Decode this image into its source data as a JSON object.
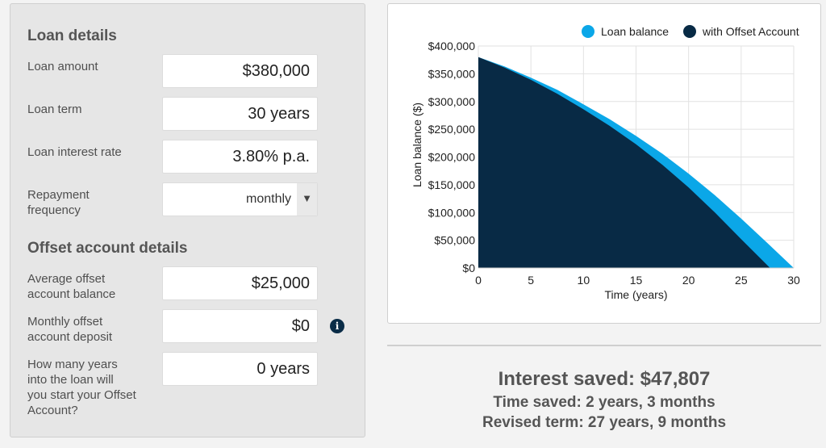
{
  "loan": {
    "title": "Loan details",
    "amount_label": "Loan amount",
    "amount_value": "$380,000",
    "term_label": "Loan term",
    "term_value": "30 years",
    "rate_label": "Loan interest rate",
    "rate_value": "3.80% p.a.",
    "freq_label_1": "Repayment",
    "freq_label_2": "frequency",
    "freq_value": "monthly"
  },
  "offset": {
    "title": "Offset account details",
    "balance_label_1": "Average offset",
    "balance_label_2": "account balance",
    "balance_value": "$25,000",
    "deposit_label_1": "Monthly offset",
    "deposit_label_2": "account deposit",
    "deposit_value": "$0",
    "info_icon": "info-icon",
    "years_label_1": "How many years",
    "years_label_2": "into the loan will",
    "years_label_3": "you start your Offset",
    "years_label_4": "Account?",
    "years_value": "0 years"
  },
  "colors": {
    "loan_balance": "#0ba7e8",
    "offset": "#082a45"
  },
  "chart_data": {
    "type": "area",
    "title": "",
    "xlabel": "Time (years)",
    "ylabel": "Loan balance ($)",
    "xlim": [
      0,
      30
    ],
    "ylim": [
      0,
      400000
    ],
    "x_ticks": [
      0,
      5,
      10,
      15,
      20,
      25,
      30
    ],
    "y_ticks": [
      0,
      50000,
      100000,
      150000,
      200000,
      250000,
      300000,
      350000,
      400000
    ],
    "y_tick_labels": [
      "$0",
      "$50,000",
      "$100,000",
      "$150,000",
      "$200,000",
      "$250,000",
      "$300,000",
      "$350,000",
      "$400,000"
    ],
    "grid": true,
    "legend_position": "top-right",
    "series": [
      {
        "name": "Loan balance",
        "color": "#0ba7e8",
        "x": [
          0,
          2.5,
          5,
          7.5,
          10,
          12.5,
          15,
          17.5,
          20,
          22.5,
          25,
          27.5,
          30
        ],
        "values": [
          380000,
          363000,
          343000,
          321000,
          295000,
          268000,
          238000,
          206000,
          170000,
          131000,
          89000,
          45000,
          0
        ]
      },
      {
        "name": "with Offset Account",
        "color": "#082a45",
        "x": [
          0,
          2.5,
          5,
          7.5,
          10,
          12.5,
          15,
          17.5,
          20,
          22.5,
          25,
          27.75
        ],
        "values": [
          380000,
          361000,
          339000,
          314000,
          286000,
          256000,
          223000,
          186000,
          145000,
          100000,
          52000,
          0
        ]
      }
    ]
  },
  "results": {
    "interest_saved": "Interest saved: $47,807",
    "time_saved": "Time saved: 2 years, 3 months",
    "revised_term": "Revised term: 27 years, 9 months"
  }
}
